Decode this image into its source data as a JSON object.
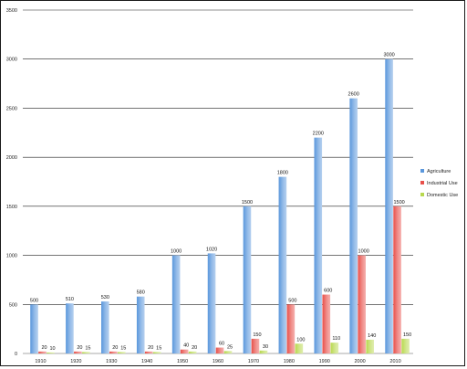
{
  "chart_data": {
    "type": "bar",
    "title": "",
    "xlabel": "",
    "ylabel": "",
    "ylim": [
      0,
      3500
    ],
    "yticks": [
      0,
      500,
      1000,
      1500,
      2000,
      2500,
      3000,
      3500
    ],
    "grid": true,
    "legend_position": "right",
    "categories": [
      "1910",
      "1920",
      "1930",
      "1940",
      "1950",
      "1960",
      "1970",
      "1980",
      "1990",
      "2000",
      "2010"
    ],
    "series": [
      {
        "name": "Agriculture",
        "color": "#5a97dc",
        "values": [
          500,
          510,
          530,
          580,
          1000,
          1020,
          1500,
          1800,
          2200,
          2600,
          3000
        ]
      },
      {
        "name": "Industrial Use",
        "color": "#e8504a",
        "values": [
          20,
          20,
          20,
          20,
          40,
          60,
          150,
          500,
          600,
          1000,
          1500
        ]
      },
      {
        "name": "Domestic Use",
        "color": "#b8d84e",
        "values": [
          10,
          15,
          15,
          15,
          20,
          25,
          30,
          100,
          110,
          140,
          150
        ]
      }
    ]
  }
}
